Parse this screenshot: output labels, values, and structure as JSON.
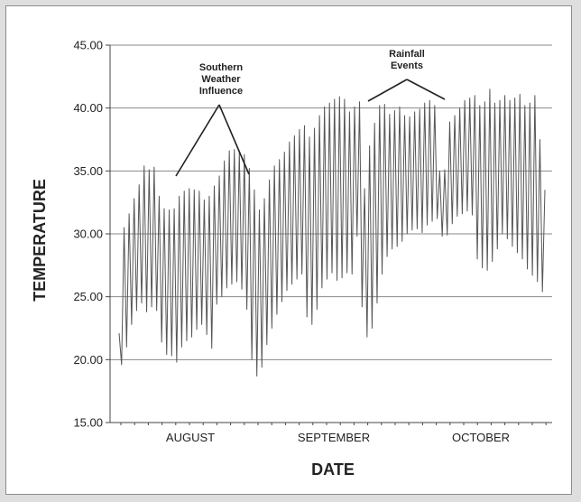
{
  "chart_data": {
    "type": "line",
    "title": "",
    "xlabel": "DATE",
    "ylabel": "TEMPERATURE",
    "ylim": [
      15,
      45
    ],
    "yticks": [
      "15.00",
      "20.00",
      "25.00",
      "30.00",
      "35.00",
      "40.00",
      "45.00"
    ],
    "xtick_labels": [
      "AUGUST",
      "SEPTEMBER",
      "OCTOBER"
    ],
    "grid": "horizontal",
    "colors": {
      "line": "#555555",
      "grid": "#8a8a8a",
      "axis": "#444444"
    },
    "annotations": [
      {
        "lines": [
          "Southern",
          "Weather",
          "Influence"
        ]
      },
      {
        "lines": [
          "Rainfall",
          "Events"
        ]
      }
    ],
    "series": [
      {
        "values": [
          22.1,
          19.6,
          30.5,
          21.0,
          31.6,
          22.8,
          32.8,
          23.9,
          33.9,
          24.5,
          35.4,
          23.8,
          35.1,
          24.2,
          35.3,
          23.9,
          33.0,
          21.4,
          32.0,
          20.4,
          31.9,
          20.3,
          32.0,
          19.8,
          33.0,
          21.0,
          33.4,
          21.5,
          33.6,
          21.8,
          33.5,
          22.4,
          33.4,
          22.8,
          32.7,
          22.0,
          33.0,
          20.9,
          33.8,
          24.4,
          34.6,
          25.0,
          35.8,
          25.7,
          36.6,
          26.0,
          36.7,
          26.2,
          36.5,
          25.6,
          36.3,
          24.0,
          35.2,
          20.0,
          33.5,
          18.7,
          31.9,
          19.4,
          32.8,
          21.2,
          34.3,
          22.5,
          35.4,
          23.6,
          35.9,
          24.6,
          36.5,
          25.5,
          37.3,
          26.0,
          37.8,
          26.4,
          38.3,
          26.8,
          38.6,
          23.4,
          37.7,
          22.8,
          38.4,
          24.0,
          39.4,
          25.7,
          40.1,
          26.4,
          40.4,
          26.9,
          40.7,
          26.3,
          40.9,
          26.5,
          40.7,
          26.9,
          39.7,
          26.8,
          40.1,
          29.8,
          40.5,
          24.2,
          33.6,
          21.8,
          37.0,
          22.5,
          38.8,
          24.5,
          40.2,
          26.8,
          40.3,
          28.2,
          39.5,
          28.8,
          39.8,
          29.0,
          40.1,
          29.4,
          39.4,
          30.0,
          39.3,
          30.3,
          39.7,
          30.4,
          39.9,
          30.1,
          40.4,
          30.7,
          40.6,
          31.0,
          40.2,
          31.2,
          35.0,
          29.8,
          35.1,
          29.9,
          38.9,
          30.8,
          39.4,
          31.4,
          40.0,
          31.6,
          40.6,
          31.8,
          40.8,
          31.5,
          41.0,
          28.0,
          40.2,
          27.3,
          40.5,
          27.1,
          41.5,
          27.8,
          40.4,
          28.8,
          40.6,
          30.0,
          41.0,
          29.6,
          40.6,
          29.0,
          40.8,
          28.5,
          41.1,
          28.0,
          40.2,
          27.2,
          40.4,
          26.7,
          41.0,
          26.2,
          37.5,
          25.4,
          33.5
        ]
      }
    ]
  }
}
